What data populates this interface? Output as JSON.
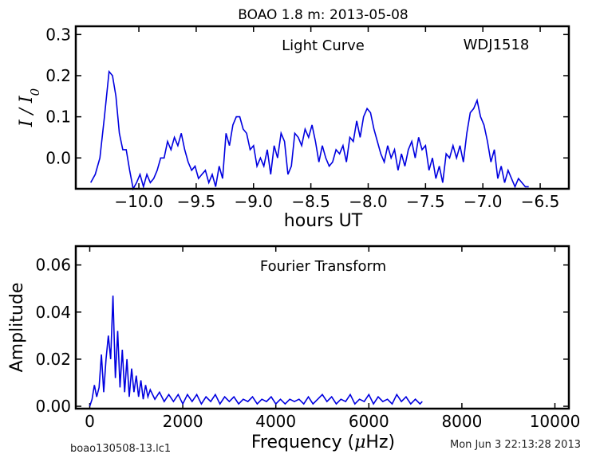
{
  "figure_title": "BOAO 1.8 m:  2013-05-08",
  "footer_left": "boao130508-13.lc1",
  "footer_right": "Mon Jun  3 22:13:28 2013",
  "colors": {
    "line": "#0000e0",
    "axes": "#000000"
  },
  "chart_data": [
    {
      "type": "line",
      "title": "Light Curve",
      "annotation": "WDJ1518",
      "xlabel": "hours UT",
      "ylabel": "I / I0",
      "xlim": [
        -10.55,
        -6.25
      ],
      "ylim": [
        -0.075,
        0.32
      ],
      "xticks": [
        -10.0,
        -9.5,
        -9.0,
        -8.5,
        -8.0,
        -7.5,
        -7.0,
        -6.5
      ],
      "xtick_labels": [
        "−10.0",
        "−9.5",
        "−9.0",
        "−8.5",
        "−8.0",
        "−7.5",
        "−7.0",
        "−6.5"
      ],
      "yticks": [
        0.0,
        0.1,
        0.2,
        0.3
      ],
      "ytick_labels": [
        "0.0",
        "0.1",
        "0.2",
        "0.3"
      ],
      "grid": false,
      "series": [
        {
          "x": [
            -10.42,
            -10.38,
            -10.34,
            -10.3,
            -10.26,
            -10.23,
            -10.2,
            -10.17,
            -10.14,
            -10.11,
            -10.08,
            -10.05,
            -10.02,
            -9.99,
            -9.96,
            -9.93,
            -9.9,
            -9.87,
            -9.84,
            -9.81,
            -9.78,
            -9.75,
            -9.72,
            -9.69,
            -9.66,
            -9.63,
            -9.6,
            -9.57,
            -9.54,
            -9.51,
            -9.48,
            -9.45,
            -9.42,
            -9.39,
            -9.36,
            -9.33,
            -9.3,
            -9.27,
            -9.24,
            -9.21,
            -9.18,
            -9.15,
            -9.12,
            -9.09,
            -9.06,
            -9.03,
            -9.0,
            -8.97,
            -8.94,
            -8.91,
            -8.88,
            -8.85,
            -8.82,
            -8.79,
            -8.76,
            -8.73,
            -8.7,
            -8.67,
            -8.64,
            -8.61,
            -8.58,
            -8.55,
            -8.52,
            -8.49,
            -8.46,
            -8.43,
            -8.4,
            -8.37,
            -8.34,
            -8.31,
            -8.28,
            -8.25,
            -8.22,
            -8.19,
            -8.16,
            -8.13,
            -8.1,
            -8.07,
            -8.04,
            -8.01,
            -7.98,
            -7.95,
            -7.92,
            -7.89,
            -7.86,
            -7.83,
            -7.8,
            -7.77,
            -7.74,
            -7.71,
            -7.68,
            -7.65,
            -7.62,
            -7.59,
            -7.56,
            -7.53,
            -7.5,
            -7.47,
            -7.44,
            -7.41,
            -7.38,
            -7.35,
            -7.32,
            -7.29,
            -7.26,
            -7.23,
            -7.2,
            -7.17,
            -7.14,
            -7.11,
            -7.08,
            -7.05,
            -7.02,
            -6.99,
            -6.96,
            -6.93,
            -6.9,
            -6.87,
            -6.84,
            -6.81,
            -6.78,
            -6.75,
            -6.72,
            -6.69,
            -6.66,
            -6.63,
            -6.6
          ],
          "y": [
            -0.06,
            -0.04,
            0.0,
            0.1,
            0.21,
            0.2,
            0.15,
            0.06,
            0.02,
            0.02,
            -0.03,
            -0.08,
            -0.06,
            -0.04,
            -0.07,
            -0.04,
            -0.06,
            -0.05,
            -0.03,
            0.0,
            0.0,
            0.04,
            0.02,
            0.05,
            0.03,
            0.06,
            0.02,
            -0.01,
            -0.03,
            -0.02,
            -0.05,
            -0.04,
            -0.03,
            -0.06,
            -0.04,
            -0.07,
            -0.02,
            -0.05,
            0.06,
            0.03,
            0.08,
            0.1,
            0.1,
            0.07,
            0.06,
            0.02,
            0.03,
            -0.02,
            0.0,
            -0.02,
            0.02,
            -0.04,
            0.03,
            0.0,
            0.06,
            0.04,
            -0.04,
            -0.02,
            0.06,
            0.05,
            0.03,
            0.07,
            0.05,
            0.08,
            0.04,
            -0.01,
            0.03,
            0.0,
            -0.02,
            -0.01,
            0.02,
            0.01,
            0.03,
            -0.01,
            0.05,
            0.04,
            0.09,
            0.05,
            0.1,
            0.12,
            0.11,
            0.07,
            0.04,
            0.01,
            -0.01,
            0.03,
            0.0,
            0.02,
            -0.03,
            0.01,
            -0.02,
            0.02,
            0.04,
            0.0,
            0.05,
            0.02,
            0.03,
            -0.03,
            0.0,
            -0.05,
            -0.02,
            -0.06,
            0.01,
            0.0,
            0.03,
            0.0,
            0.03,
            -0.01,
            0.06,
            0.11,
            0.12,
            0.14,
            0.1,
            0.08,
            0.04,
            -0.01,
            0.02,
            -0.05,
            -0.02,
            -0.06,
            -0.03,
            -0.05,
            -0.07,
            -0.05,
            -0.06,
            -0.07,
            -0.07
          ]
        }
      ]
    },
    {
      "type": "line",
      "title": "Fourier Transform",
      "xlabel": "Frequency (μHz)",
      "xlabel_pre": "Frequency (",
      "xlabel_mu": "μ",
      "xlabel_post": "Hz)",
      "ylabel": "Amplitude",
      "xlim": [
        -300,
        10300
      ],
      "ylim": [
        -0.001,
        0.068
      ],
      "xticks": [
        0,
        2000,
        4000,
        6000,
        8000,
        10000
      ],
      "xtick_labels": [
        "0",
        "2000",
        "4000",
        "6000",
        "8000",
        "10000"
      ],
      "yticks": [
        0.0,
        0.02,
        0.04,
        0.06
      ],
      "ytick_labels": [
        "0.00",
        "0.02",
        "0.04",
        "0.06"
      ],
      "grid": false,
      "series": [
        {
          "x": [
            0,
            50,
            100,
            150,
            200,
            250,
            300,
            350,
            400,
            450,
            500,
            550,
            600,
            650,
            700,
            750,
            800,
            850,
            900,
            950,
            1000,
            1050,
            1100,
            1150,
            1200,
            1250,
            1300,
            1400,
            1500,
            1600,
            1700,
            1800,
            1900,
            2000,
            2100,
            2200,
            2300,
            2400,
            2500,
            2600,
            2700,
            2800,
            2900,
            3000,
            3100,
            3200,
            3300,
            3400,
            3500,
            3600,
            3700,
            3800,
            3900,
            4000,
            4100,
            4200,
            4300,
            4400,
            4500,
            4600,
            4700,
            4800,
            4900,
            5000,
            5100,
            5200,
            5300,
            5400,
            5500,
            5600,
            5700,
            5800,
            5900,
            6000,
            6100,
            6200,
            6300,
            6400,
            6500,
            6600,
            6700,
            6800,
            6900,
            7000,
            7100,
            7150
          ],
          "y": [
            0.0,
            0.003,
            0.009,
            0.004,
            0.008,
            0.022,
            0.006,
            0.02,
            0.03,
            0.02,
            0.047,
            0.012,
            0.032,
            0.008,
            0.024,
            0.006,
            0.02,
            0.004,
            0.016,
            0.006,
            0.013,
            0.004,
            0.011,
            0.003,
            0.009,
            0.004,
            0.007,
            0.003,
            0.006,
            0.002,
            0.005,
            0.002,
            0.005,
            0.001,
            0.005,
            0.002,
            0.005,
            0.001,
            0.004,
            0.002,
            0.005,
            0.001,
            0.004,
            0.002,
            0.004,
            0.001,
            0.003,
            0.002,
            0.004,
            0.001,
            0.003,
            0.002,
            0.004,
            0.001,
            0.003,
            0.001,
            0.003,
            0.002,
            0.003,
            0.001,
            0.004,
            0.001,
            0.003,
            0.005,
            0.002,
            0.004,
            0.001,
            0.003,
            0.002,
            0.005,
            0.001,
            0.003,
            0.002,
            0.005,
            0.001,
            0.004,
            0.002,
            0.003,
            0.001,
            0.005,
            0.002,
            0.004,
            0.001,
            0.003,
            0.001,
            0.002
          ]
        }
      ]
    }
  ]
}
